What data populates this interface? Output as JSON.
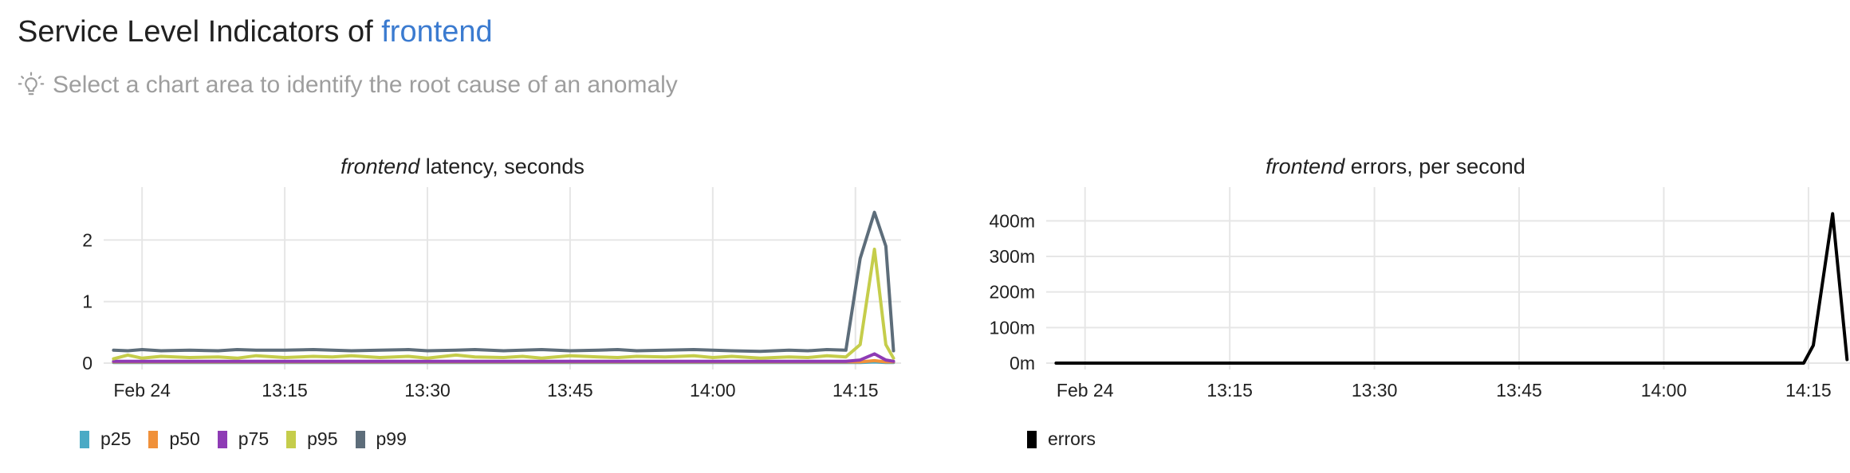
{
  "header": {
    "title_prefix": "Service Level Indicators of ",
    "service_name": "frontend",
    "hint": "Select a chart area to identify the root cause of an anomaly",
    "hint_icon": "lightbulb-icon"
  },
  "charts": [
    {
      "id": "latency",
      "title_service": "frontend",
      "title_rest": " latency, seconds"
    },
    {
      "id": "errors",
      "title_service": "frontend",
      "title_rest": " errors, per second"
    }
  ],
  "chart_data": [
    {
      "type": "line",
      "title": "frontend latency, seconds",
      "x_ticks": [
        "Feb 24",
        "13:15",
        "13:30",
        "13:45",
        "14:00",
        "14:15"
      ],
      "x_tick_minutes": [
        0,
        15,
        30,
        45,
        60,
        75
      ],
      "x_domain_minutes": [
        -3.2,
        79.8
      ],
      "y_ticks": [
        "0",
        "1",
        "2"
      ],
      "y_tick_values": [
        0,
        1,
        2
      ],
      "ylim": [
        0,
        2.6
      ],
      "grid": true,
      "legend_position": "bottom-left",
      "series": [
        {
          "name": "p25",
          "color": "#4aaac5",
          "x": [
            -3,
            0,
            5,
            10,
            15,
            20,
            25,
            30,
            35,
            40,
            45,
            50,
            55,
            60,
            65,
            70,
            74,
            75.5,
            77,
            78.2,
            79
          ],
          "y": [
            0.01,
            0.01,
            0.01,
            0.01,
            0.01,
            0.01,
            0.01,
            0.01,
            0.01,
            0.01,
            0.01,
            0.01,
            0.01,
            0.01,
            0.01,
            0.01,
            0.01,
            0.01,
            0.02,
            0.01,
            0.01
          ]
        },
        {
          "name": "p50",
          "color": "#f0913a",
          "x": [
            -3,
            0,
            5,
            10,
            15,
            20,
            25,
            30,
            35,
            40,
            45,
            50,
            55,
            60,
            65,
            70,
            74,
            75.5,
            77,
            78.2,
            79
          ],
          "y": [
            0.02,
            0.02,
            0.02,
            0.02,
            0.02,
            0.02,
            0.02,
            0.02,
            0.02,
            0.02,
            0.02,
            0.02,
            0.02,
            0.02,
            0.02,
            0.02,
            0.02,
            0.02,
            0.04,
            0.02,
            0.02
          ]
        },
        {
          "name": "p75",
          "color": "#8e3bb5",
          "x": [
            -3,
            0,
            5,
            10,
            15,
            20,
            25,
            30,
            35,
            40,
            45,
            50,
            55,
            60,
            65,
            70,
            74,
            75.5,
            77,
            78.2,
            79
          ],
          "y": [
            0.03,
            0.03,
            0.03,
            0.03,
            0.03,
            0.03,
            0.03,
            0.03,
            0.03,
            0.03,
            0.03,
            0.03,
            0.03,
            0.03,
            0.03,
            0.03,
            0.03,
            0.05,
            0.15,
            0.05,
            0.03
          ]
        },
        {
          "name": "p95",
          "color": "#c5cd4b",
          "x": [
            -3,
            -1.5,
            0,
            2,
            5,
            8,
            10,
            12,
            15,
            18,
            20,
            22,
            25,
            28,
            30,
            33,
            35,
            38,
            40,
            42,
            45,
            48,
            50,
            52,
            55,
            58,
            60,
            62,
            65,
            68,
            70,
            72,
            74,
            75.5,
            77,
            78.2,
            79
          ],
          "y": [
            0.07,
            0.13,
            0.08,
            0.11,
            0.09,
            0.1,
            0.08,
            0.12,
            0.09,
            0.11,
            0.1,
            0.12,
            0.09,
            0.11,
            0.08,
            0.13,
            0.1,
            0.09,
            0.11,
            0.08,
            0.12,
            0.1,
            0.09,
            0.11,
            0.1,
            0.12,
            0.09,
            0.11,
            0.08,
            0.1,
            0.09,
            0.12,
            0.1,
            0.3,
            1.85,
            0.3,
            0.08
          ]
        },
        {
          "name": "p99",
          "color": "#5d6d7a",
          "x": [
            -3,
            -1.5,
            0,
            2,
            5,
            8,
            10,
            12,
            15,
            18,
            20,
            22,
            25,
            28,
            30,
            33,
            35,
            38,
            40,
            42,
            45,
            48,
            50,
            52,
            55,
            58,
            60,
            62,
            65,
            68,
            70,
            72,
            74,
            75.5,
            77,
            78.2,
            79
          ],
          "y": [
            0.21,
            0.2,
            0.22,
            0.2,
            0.21,
            0.2,
            0.22,
            0.21,
            0.21,
            0.22,
            0.21,
            0.2,
            0.21,
            0.22,
            0.2,
            0.21,
            0.22,
            0.2,
            0.21,
            0.22,
            0.2,
            0.21,
            0.22,
            0.2,
            0.21,
            0.22,
            0.21,
            0.2,
            0.19,
            0.21,
            0.2,
            0.22,
            0.21,
            1.7,
            2.45,
            1.9,
            0.2
          ]
        }
      ]
    },
    {
      "type": "line",
      "title": "frontend errors, per second",
      "x_ticks": [
        "Feb 24",
        "13:15",
        "13:30",
        "13:45",
        "14:00",
        "14:15"
      ],
      "x_tick_minutes": [
        0,
        15,
        30,
        45,
        60,
        75
      ],
      "x_domain_minutes": [
        -3.2,
        79.8
      ],
      "y_ticks": [
        "0m",
        "100m",
        "200m",
        "300m",
        "400m"
      ],
      "y_tick_values": [
        0,
        0.1,
        0.2,
        0.3,
        0.4
      ],
      "ylim": [
        0,
        0.45
      ],
      "grid": true,
      "legend_position": "bottom-left",
      "series": [
        {
          "name": "errors",
          "color": "#000000",
          "x": [
            -3,
            0,
            10,
            20,
            30,
            40,
            50,
            60,
            70,
            74.5,
            75.5,
            77.5,
            79
          ],
          "y": [
            0,
            0,
            0,
            0,
            0,
            0,
            0,
            0,
            0,
            0,
            0.05,
            0.42,
            0.01
          ]
        }
      ]
    }
  ]
}
